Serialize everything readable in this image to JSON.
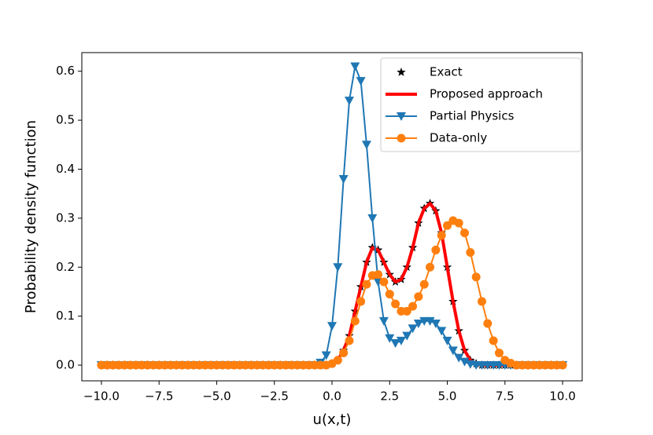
{
  "chart_data": {
    "type": "line",
    "xlabel": "u(x,t)",
    "ylabel": "Probability density function",
    "x": [
      -10,
      -9.75,
      -9.5,
      -9.25,
      -9,
      -8.75,
      -8.5,
      -8.25,
      -8,
      -7.75,
      -7.5,
      -7.25,
      -7,
      -6.75,
      -6.5,
      -6.25,
      -6,
      -5.75,
      -5.5,
      -5.25,
      -5,
      -4.75,
      -4.5,
      -4.25,
      -4,
      -3.75,
      -3.5,
      -3.25,
      -3,
      -2.75,
      -2.5,
      -2.25,
      -2,
      -1.75,
      -1.5,
      -1.25,
      -1,
      -0.75,
      -0.5,
      -0.25,
      0,
      0.25,
      0.5,
      0.75,
      1,
      1.25,
      1.5,
      1.75,
      2,
      2.25,
      2.5,
      2.75,
      3,
      3.25,
      3.5,
      3.75,
      4,
      4.25,
      4.5,
      4.75,
      5,
      5.25,
      5.5,
      5.75,
      6,
      6.25,
      6.5,
      6.75,
      7,
      7.25,
      7.5,
      7.75,
      8,
      8.25,
      8.5,
      8.75,
      9,
      9.25,
      9.5,
      9.75,
      10
    ],
    "series": [
      {
        "name": "Exact",
        "color": "#000000",
        "marker": "star",
        "line": false,
        "linewidth": 0,
        "values": [
          0,
          0,
          0,
          0,
          0,
          0,
          0,
          0,
          0,
          0,
          0,
          0,
          0,
          0,
          0,
          0,
          0,
          0,
          0,
          0,
          0,
          0,
          0,
          0,
          0,
          0,
          0,
          0,
          0,
          0,
          0,
          0,
          0,
          0,
          0,
          0,
          0,
          0,
          0,
          0,
          0.003,
          0.01,
          0.03,
          0.06,
          0.11,
          0.16,
          0.21,
          0.24,
          0.235,
          0.21,
          0.185,
          0.17,
          0.175,
          0.2,
          0.24,
          0.29,
          0.32,
          0.33,
          0.315,
          0.27,
          0.2,
          0.13,
          0.07,
          0.03,
          0.01,
          0.003,
          0,
          0,
          0,
          0,
          0,
          0,
          0,
          0,
          0,
          0,
          0,
          0,
          0,
          0,
          0
        ]
      },
      {
        "name": "Proposed approach",
        "color": "#ff0000",
        "marker": "none",
        "line": true,
        "linewidth": 4,
        "values": [
          0,
          0,
          0,
          0,
          0,
          0,
          0,
          0,
          0,
          0,
          0,
          0,
          0,
          0,
          0,
          0,
          0,
          0,
          0,
          0,
          0,
          0,
          0,
          0,
          0,
          0,
          0,
          0,
          0,
          0,
          0,
          0,
          0,
          0,
          0,
          0,
          0,
          0,
          0,
          0,
          0.003,
          0.01,
          0.03,
          0.06,
          0.11,
          0.16,
          0.21,
          0.24,
          0.235,
          0.21,
          0.185,
          0.17,
          0.175,
          0.2,
          0.24,
          0.29,
          0.32,
          0.33,
          0.315,
          0.27,
          0.2,
          0.13,
          0.07,
          0.03,
          0.01,
          0.003,
          0,
          0,
          0,
          0,
          0,
          0,
          0,
          0,
          0,
          0,
          0,
          0,
          0,
          0,
          0
        ]
      },
      {
        "name": "Partial Physics",
        "color": "#1f77b4",
        "marker": "triangle-down",
        "line": true,
        "linewidth": 2,
        "values": [
          0,
          0,
          0,
          0,
          0,
          0,
          0,
          0,
          0,
          0,
          0,
          0,
          0,
          0,
          0,
          0,
          0,
          0,
          0,
          0,
          0,
          0,
          0,
          0,
          0,
          0,
          0,
          0,
          0,
          0,
          0,
          0,
          0,
          0,
          0,
          0,
          0,
          0,
          0.005,
          0.02,
          0.08,
          0.2,
          0.38,
          0.54,
          0.61,
          0.58,
          0.45,
          0.3,
          0.17,
          0.09,
          0.055,
          0.045,
          0.05,
          0.06,
          0.075,
          0.085,
          0.09,
          0.09,
          0.085,
          0.07,
          0.05,
          0.03,
          0.015,
          0.007,
          0.002,
          0,
          0,
          0,
          0,
          0,
          0,
          0,
          0,
          0,
          0,
          0,
          0,
          0,
          0,
          0,
          0
        ]
      },
      {
        "name": "Data-only",
        "color": "#ff7f0e",
        "marker": "circle",
        "line": true,
        "linewidth": 2,
        "values": [
          0,
          0,
          0,
          0,
          0,
          0,
          0,
          0,
          0,
          0,
          0,
          0,
          0,
          0,
          0,
          0,
          0,
          0,
          0,
          0,
          0,
          0,
          0,
          0,
          0,
          0,
          0,
          0,
          0,
          0,
          0,
          0,
          0,
          0,
          0,
          0,
          0,
          0,
          0,
          0,
          0.003,
          0.01,
          0.025,
          0.05,
          0.09,
          0.13,
          0.165,
          0.183,
          0.185,
          0.17,
          0.145,
          0.125,
          0.11,
          0.11,
          0.12,
          0.14,
          0.165,
          0.2,
          0.235,
          0.265,
          0.285,
          0.295,
          0.29,
          0.27,
          0.23,
          0.18,
          0.13,
          0.085,
          0.05,
          0.025,
          0.01,
          0.004,
          0,
          0,
          0,
          0,
          0,
          0,
          0,
          0,
          0
        ]
      }
    ],
    "xlim": [
      -10.85,
      10.85
    ],
    "xticks": [
      {
        "value": -10,
        "label": "−10.0"
      },
      {
        "value": -7.5,
        "label": "−7.5"
      },
      {
        "value": -5,
        "label": "−5.0"
      },
      {
        "value": -2.5,
        "label": "−2.5"
      },
      {
        "value": 0,
        "label": "0.0"
      },
      2.5,
      {
        "value": 5,
        "label": "5.0"
      },
      7.5,
      {
        "value": 10,
        "label": "10.0"
      }
    ],
    "ylim": [
      -0.032,
      0.638
    ],
    "yticks": [
      {
        "value": 0,
        "label": "0.0"
      },
      0.1,
      0.2,
      0.3,
      0.4,
      0.5,
      0.6
    ],
    "grid": false,
    "legend": "upper right"
  }
}
